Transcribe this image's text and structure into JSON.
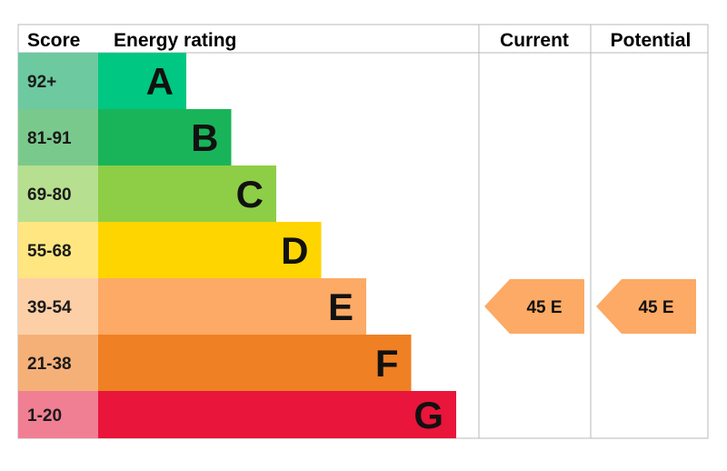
{
  "headers": {
    "score": "Score",
    "energy_rating": "Energy rating",
    "current": "Current",
    "potential": "Potential"
  },
  "chart_data": {
    "type": "table",
    "bands": [
      {
        "score": "92+",
        "letter": "A",
        "bar_color": "#00c781",
        "score_color": "#6cc9a0"
      },
      {
        "score": "81-91",
        "letter": "B",
        "bar_color": "#19b459",
        "score_color": "#7ac98c"
      },
      {
        "score": "69-80",
        "letter": "C",
        "bar_color": "#8dce46",
        "score_color": "#b7df90"
      },
      {
        "score": "55-68",
        "letter": "D",
        "bar_color": "#ffd500",
        "score_color": "#ffe680"
      },
      {
        "score": "39-54",
        "letter": "E",
        "bar_color": "#fcaa65",
        "score_color": "#fdcfa6"
      },
      {
        "score": "21-38",
        "letter": "F",
        "bar_color": "#ef8023",
        "score_color": "#f5b078"
      },
      {
        "score": "1-20",
        "letter": "G",
        "bar_color": "#e9153b",
        "score_color": "#f07f94"
      }
    ],
    "current": {
      "value": 45,
      "band": "E",
      "label": "45  E"
    },
    "potential": {
      "value": 45,
      "band": "E",
      "label": "45  E"
    }
  },
  "colors": {
    "grid": "#b8b8b8",
    "arrow_fill": "#fcaa65"
  }
}
